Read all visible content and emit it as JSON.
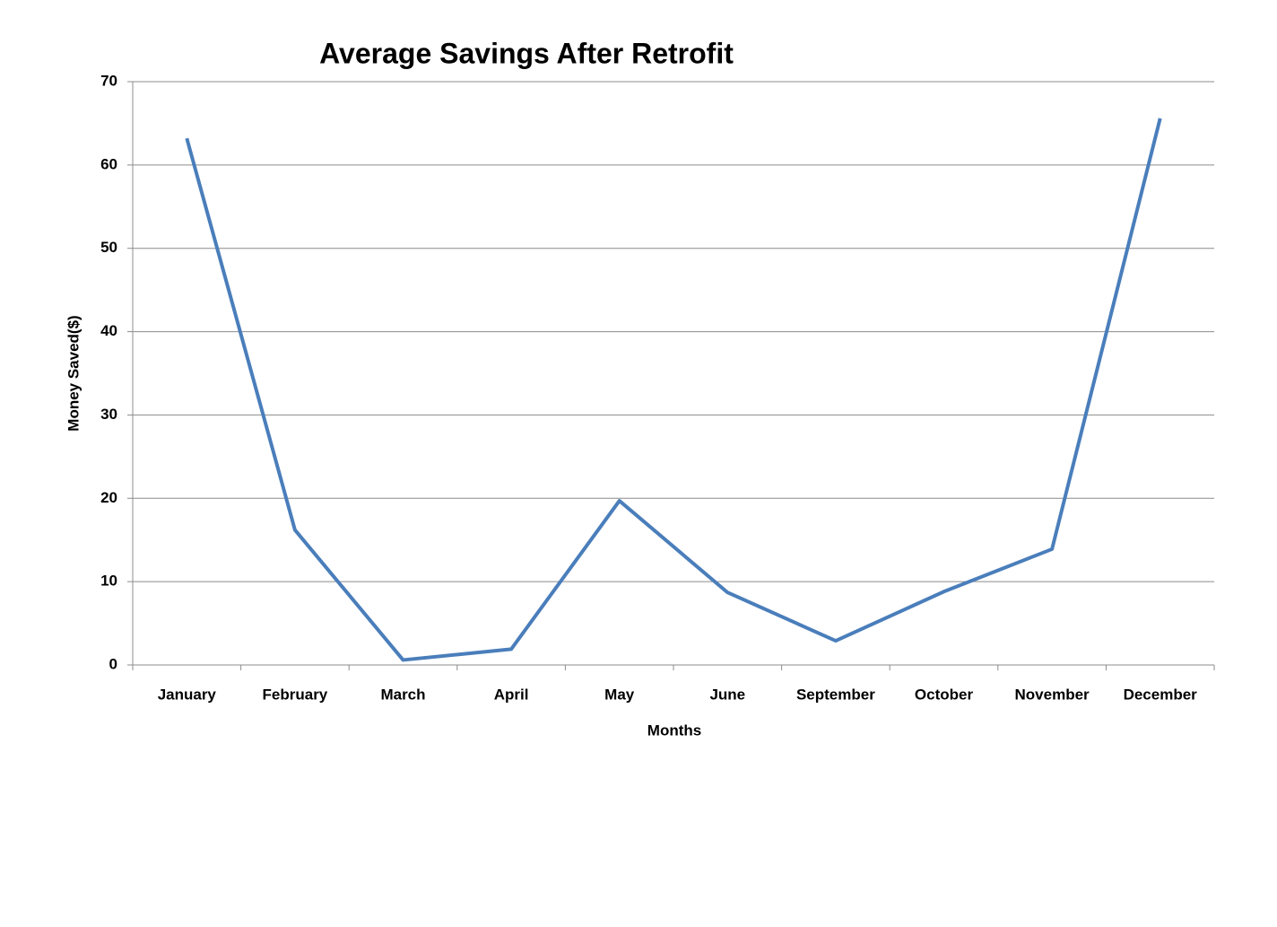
{
  "chart_data": {
    "type": "line",
    "title": "Average Savings After Retrofit",
    "x_label": "Months",
    "y_label": "Money Saved($)",
    "categories": [
      "January",
      "February",
      "March",
      "April",
      "May",
      "June",
      "September",
      "October",
      "November",
      "December"
    ],
    "series": [
      {
        "name": "Money Saved",
        "color": "#4a7ebb",
        "values": [
          63.2,
          16.2,
          0.6,
          1.9,
          19.7,
          8.7,
          2.9,
          8.8,
          13.9,
          65.6
        ]
      }
    ],
    "ylim": [
      0,
      70
    ],
    "yticks": [
      0,
      10,
      20,
      30,
      40,
      50,
      60,
      70
    ],
    "grid": true
  }
}
